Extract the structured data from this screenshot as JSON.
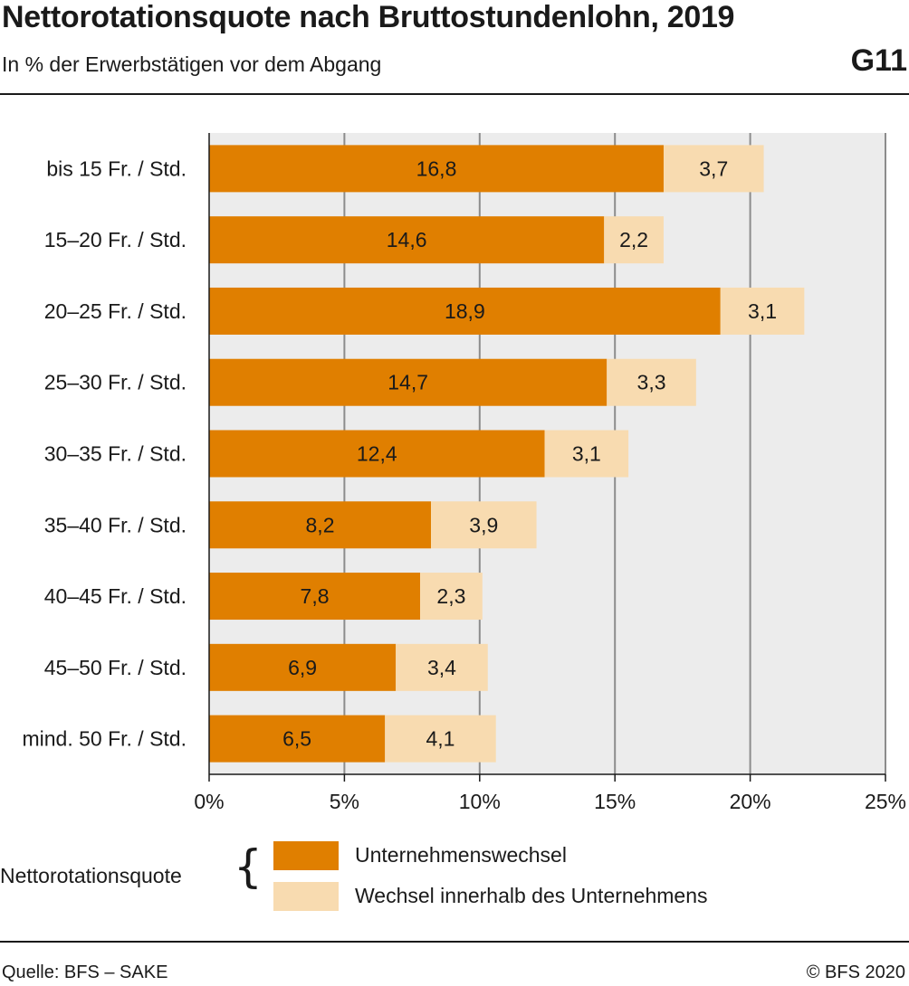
{
  "header": {
    "title": "Nettorotationsquote nach Bruttostundenlohn, 2019",
    "subtitle": "In % der Erwerbstätigen vor dem Abgang",
    "chart_id": "G11"
  },
  "legend": {
    "group_label": "Nettorotationsquote",
    "items": [
      {
        "label": "Unternehmenswechsel",
        "color": "#e07f00"
      },
      {
        "label": "Wechsel innerhalb des Unternehmens",
        "color": "#f8dbb0"
      }
    ]
  },
  "footer": {
    "source": "Quelle: BFS – SAKE",
    "copyright": "© BFS 2020"
  },
  "chart_data": {
    "type": "bar",
    "orientation": "horizontal",
    "stacked": true,
    "categories": [
      "bis 15 Fr. / Std.",
      "15–20 Fr. / Std.",
      "20–25 Fr. / Std.",
      "25–30 Fr. / Std.",
      "30–35 Fr. / Std.",
      "35–40 Fr. / Std.",
      "40–45 Fr. / Std.",
      "45–50 Fr. / Std.",
      "mind. 50 Fr. / Std."
    ],
    "series": [
      {
        "name": "Unternehmenswechsel",
        "color": "#e07f00",
        "values": [
          16.8,
          14.6,
          18.9,
          14.7,
          12.4,
          8.2,
          7.8,
          6.9,
          6.5
        ],
        "labels": [
          "16,8",
          "14,6",
          "18,9",
          "14,7",
          "12,4",
          "8,2",
          "7,8",
          "6,9",
          "6,5"
        ]
      },
      {
        "name": "Wechsel innerhalb des Unternehmens",
        "color": "#f8dbb0",
        "values": [
          3.7,
          2.2,
          3.1,
          3.3,
          3.1,
          3.9,
          2.3,
          3.4,
          4.1
        ],
        "labels": [
          "3,7",
          "2,2",
          "3,1",
          "3,3",
          "3,1",
          "3,9",
          "2,3",
          "3,4",
          "4,1"
        ]
      }
    ],
    "xlim": [
      0,
      25
    ],
    "xticks": [
      0,
      5,
      10,
      15,
      20,
      25
    ],
    "xtick_labels": [
      "0%",
      "5%",
      "10%",
      "15%",
      "20%",
      "25%"
    ],
    "grid": true,
    "plot_background": "#ececec",
    "gridline_color": "#8c8c8c",
    "legend_position": "bottom"
  }
}
